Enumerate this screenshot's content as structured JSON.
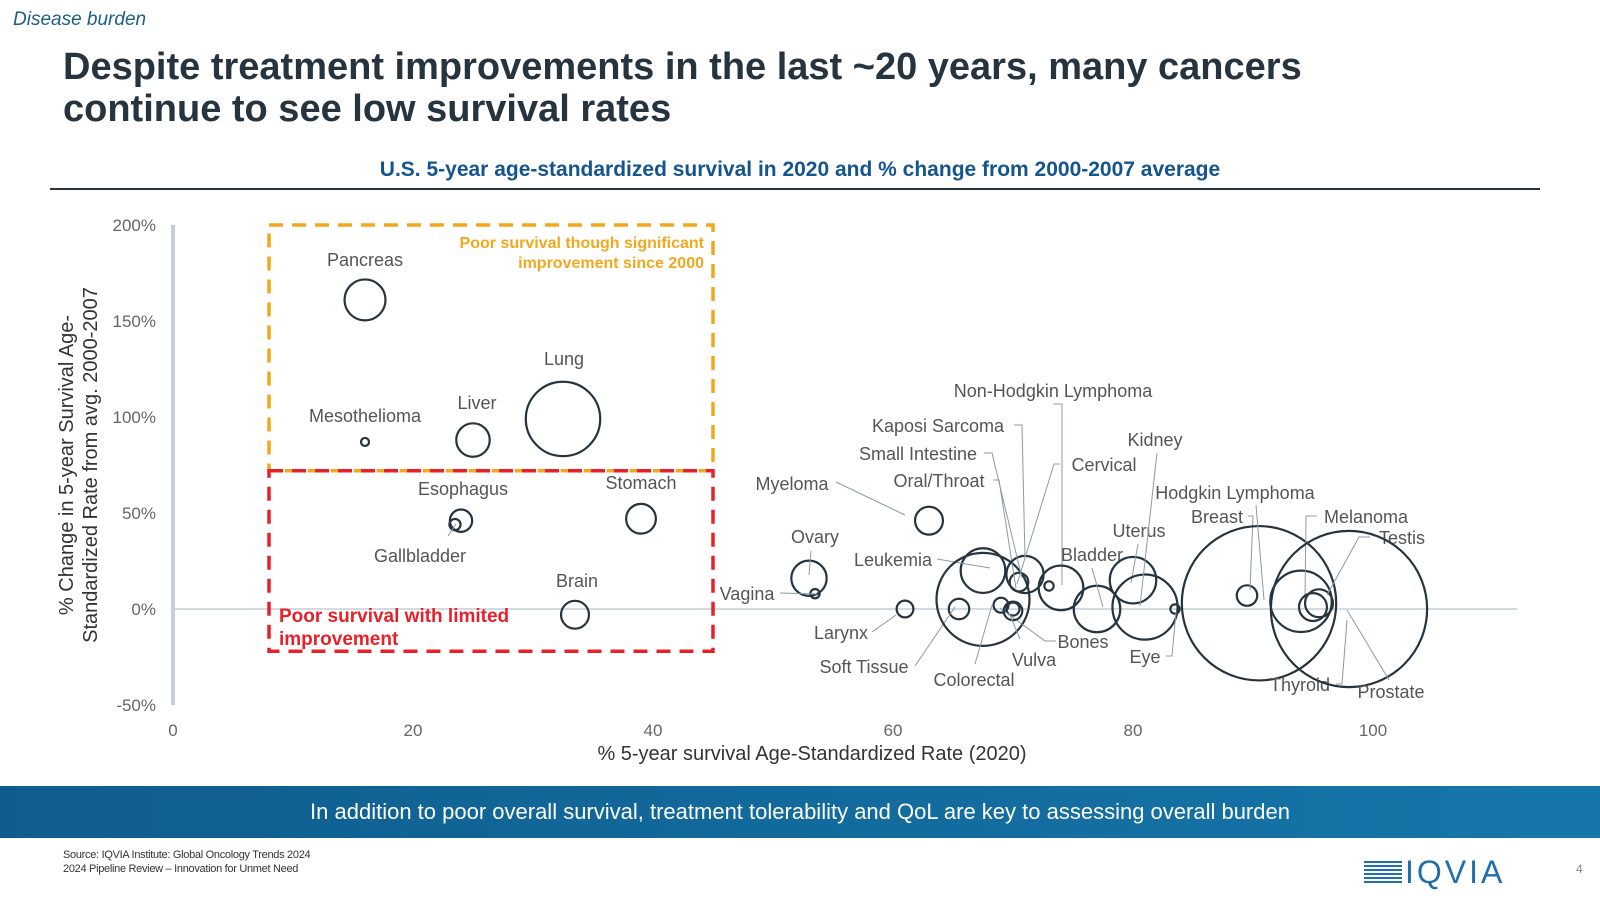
{
  "header": {
    "section": "Disease burden",
    "title": "Despite treatment improvements in the last ~20 years, many cancers continue to see low survival rates",
    "subtitle": "U.S. 5-year age-standardized survival in 2020 and % change from 2000-2007 average"
  },
  "chart_data": {
    "type": "scatter",
    "title": "U.S. 5-year age-standardized survival in 2020 and % change from 2000-2007 average",
    "xlabel": "% 5-year survival Age-Standardized Rate (2020)",
    "ylabel_lines": [
      "% Change in 5-year Survival Age-",
      "Standardized Rate from avg. 2000-2007"
    ],
    "xlim": [
      0,
      112
    ],
    "ylim": [
      -50,
      200
    ],
    "x_ticks": [
      "0",
      "20",
      "40",
      "60",
      "80",
      "100"
    ],
    "x_tick_values": [
      0,
      20,
      40,
      60,
      80,
      100
    ],
    "y_ticks": [
      "200%",
      "150%",
      "100%",
      "50%",
      "0%",
      "-50%"
    ],
    "y_tick_values": [
      200,
      150,
      100,
      50,
      0,
      -50
    ],
    "bubble_note": "bubble size reflects relative magnitude",
    "points": [
      {
        "name": "Pancreas",
        "x": 16,
        "y": 161,
        "size": 2.2
      },
      {
        "name": "Mesothelioma",
        "x": 16,
        "y": 87,
        "size": 0.4
      },
      {
        "name": "Liver",
        "x": 25,
        "y": 88,
        "size": 1.8
      },
      {
        "name": "Lung",
        "x": 32.5,
        "y": 99,
        "size": 4.0
      },
      {
        "name": "Esophagus",
        "x": 24,
        "y": 46,
        "size": 1.2
      },
      {
        "name": "Gallbladder",
        "x": 23.5,
        "y": 44,
        "size": 0.6
      },
      {
        "name": "Stomach",
        "x": 39,
        "y": 47,
        "size": 1.6
      },
      {
        "name": "Brain",
        "x": 33.5,
        "y": -3,
        "size": 1.5
      },
      {
        "name": "Myeloma",
        "x": 63,
        "y": 46,
        "size": 1.5
      },
      {
        "name": "Ovary",
        "x": 53,
        "y": 16,
        "size": 1.9
      },
      {
        "name": "Vagina",
        "x": 53.5,
        "y": 8,
        "size": 0.5
      },
      {
        "name": "Larynx",
        "x": 61,
        "y": 0,
        "size": 0.9
      },
      {
        "name": "Soft Tissue",
        "x": 65.5,
        "y": 0,
        "size": 1.1
      },
      {
        "name": "Leukemia",
        "x": 67.5,
        "y": 20,
        "size": 2.4
      },
      {
        "name": "Colorectal",
        "x": 67.5,
        "y": 5,
        "size": 5.0
      },
      {
        "name": "Oral/Throat",
        "x": 70.5,
        "y": 14,
        "size": 1.0
      },
      {
        "name": "Small Intestine",
        "x": 71,
        "y": 18,
        "size": 2.0
      },
      {
        "name": "Kaposi Sarcoma",
        "x": 70,
        "y": 0,
        "size": 0.7
      },
      {
        "name": "Non-Hodgkin Lymphoma",
        "x": 73,
        "y": 12,
        "size": 0.5
      },
      {
        "name": "Cervical",
        "x": 74,
        "y": 11,
        "size": 2.4
      },
      {
        "name": "Bones",
        "x": 69,
        "y": 2,
        "size": 0.8
      },
      {
        "name": "Vulva",
        "x": 70,
        "y": -1,
        "size": 1.0
      },
      {
        "name": "Bladder",
        "x": 77,
        "y": 0,
        "size": 2.5
      },
      {
        "name": "Uterus",
        "x": 80,
        "y": 15,
        "size": 2.5
      },
      {
        "name": "Kidney",
        "x": 81,
        "y": 1,
        "size": 3.5
      },
      {
        "name": "Eye",
        "x": 83.5,
        "y": 0,
        "size": 0.5
      },
      {
        "name": "Breast",
        "x": 89.5,
        "y": 7,
        "size": 1.1
      },
      {
        "name": "Hodgkin Lymphoma",
        "x": 90.5,
        "y": 3,
        "size": 8.3
      },
      {
        "name": "Melanoma",
        "x": 94,
        "y": 4,
        "size": 3.3
      },
      {
        "name": "Thyroid",
        "x": 95,
        "y": 1,
        "size": 1.5
      },
      {
        "name": "Testis",
        "x": 95.5,
        "y": 3,
        "size": 1.5
      },
      {
        "name": "Prostate",
        "x": 98,
        "y": 0,
        "size": 8.4
      }
    ],
    "regions": [
      {
        "name": "Poor survival though significant improvement since 2000",
        "label_lines": [
          "Poor survival though significant",
          "improvement since 2000"
        ],
        "color": "#f2a81d",
        "x": [
          8,
          45
        ],
        "y": [
          200,
          72
        ]
      },
      {
        "name": "Poor survival with limited improvement",
        "label_lines": [
          "Poor survival with limited",
          "improvement"
        ],
        "color": "#e8202a",
        "x": [
          8,
          45
        ],
        "y": [
          72,
          -22
        ]
      }
    ],
    "colors": {
      "bubble": "#25343f",
      "axis": "#c4ced8",
      "tick": "#666666",
      "leader": "#8a9aa8"
    }
  },
  "banner": {
    "text": "In addition to poor overall survival, treatment tolerability and QoL are key to assessing overall burden"
  },
  "footer": {
    "source_line1": "Source: IQVIA Institute: Global Oncology Trends 2024",
    "source_line2": "2024 Pipeline Review – Innovation for Unmet Need",
    "logo": "IQVIA",
    "page_number": "4"
  }
}
